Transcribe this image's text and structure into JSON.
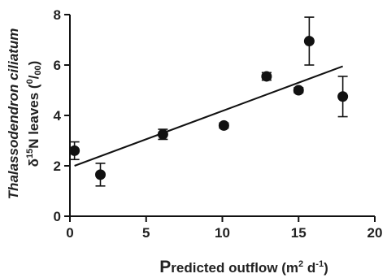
{
  "chart_data": {
    "type": "scatter",
    "xlabel": {
      "big": "P",
      "rest": "redicted outflow (m",
      "sup": "2",
      "mid": " d",
      "sup2": "-1",
      "end": ")"
    },
    "ylabel": {
      "line1": "Thalassodendron ciliatum",
      "line2_pre": "δ",
      "line2_sup": "15",
      "line2_mid": "N leaves (",
      "line2_sup2": "0",
      "line2_frac": "/",
      "line2_sub": "00",
      "line2_end": ")"
    },
    "xlim": [
      0,
      20
    ],
    "ylim": [
      0,
      8
    ],
    "xticks": [
      0,
      5,
      10,
      15,
      20
    ],
    "yticks": [
      0,
      2,
      4,
      6,
      8
    ],
    "points": [
      {
        "x": 0.3,
        "y": 2.6,
        "err": 0.35
      },
      {
        "x": 2.0,
        "y": 1.65,
        "err": 0.45
      },
      {
        "x": 6.1,
        "y": 3.25,
        "err": 0.2
      },
      {
        "x": 10.1,
        "y": 3.6,
        "err": 0.1
      },
      {
        "x": 12.9,
        "y": 5.55,
        "err": 0.15
      },
      {
        "x": 15.0,
        "y": 5.0,
        "err": 0.1
      },
      {
        "x": 15.7,
        "y": 6.95,
        "err": 0.95
      },
      {
        "x": 17.9,
        "y": 4.75,
        "err": 0.8
      }
    ],
    "trendline": {
      "x": [
        0.3,
        17.9
      ],
      "y": [
        2.0,
        5.95
      ]
    }
  }
}
